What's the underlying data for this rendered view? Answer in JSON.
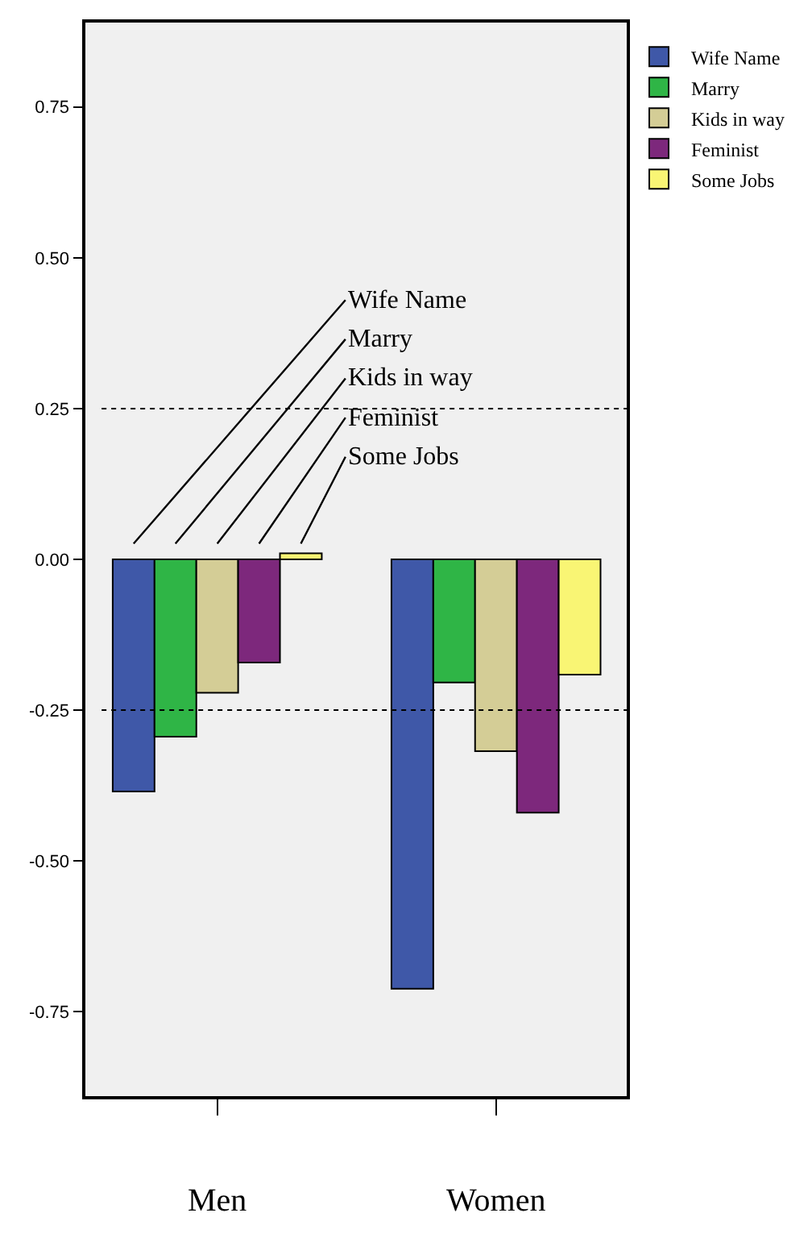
{
  "chart_data": {
    "type": "bar",
    "categories": [
      "Men",
      "Women"
    ],
    "series": [
      {
        "name": "Wife Name",
        "color": "#3f58a8",
        "values": [
          -0.385,
          -0.712
        ]
      },
      {
        "name": "Marry",
        "color": "#2fb546",
        "values": [
          -0.294,
          -0.204
        ]
      },
      {
        "name": "Kids in way",
        "color": "#d4cd96",
        "values": [
          -0.221,
          -0.318
        ]
      },
      {
        "name": "Feminist",
        "color": "#7d287c",
        "values": [
          -0.171,
          -0.42
        ]
      },
      {
        "name": "Some Jobs",
        "color": "#f9f574",
        "values": [
          0.01,
          -0.191
        ]
      }
    ],
    "ylim": [
      -0.89,
      0.89
    ],
    "yticks": [
      {
        "value": -0.75,
        "label": "-0.75"
      },
      {
        "value": -0.5,
        "label": "-0.50"
      },
      {
        "value": -0.25,
        "label": "-0.25"
      },
      {
        "value": 0,
        "label": "0.00"
      },
      {
        "value": 0.25,
        "label": "0.25"
      },
      {
        "value": 0.5,
        "label": "0.50"
      },
      {
        "value": 0.75,
        "label": "0.75"
      }
    ],
    "ref_lines": [
      {
        "axis": "y",
        "value": 0.25,
        "color": "#000000",
        "line_style": "dotted"
      },
      {
        "axis": "y",
        "value": -0.25,
        "color": "#000000",
        "line_style": "dotted"
      }
    ],
    "grid": false,
    "legend": "top right"
  }
}
